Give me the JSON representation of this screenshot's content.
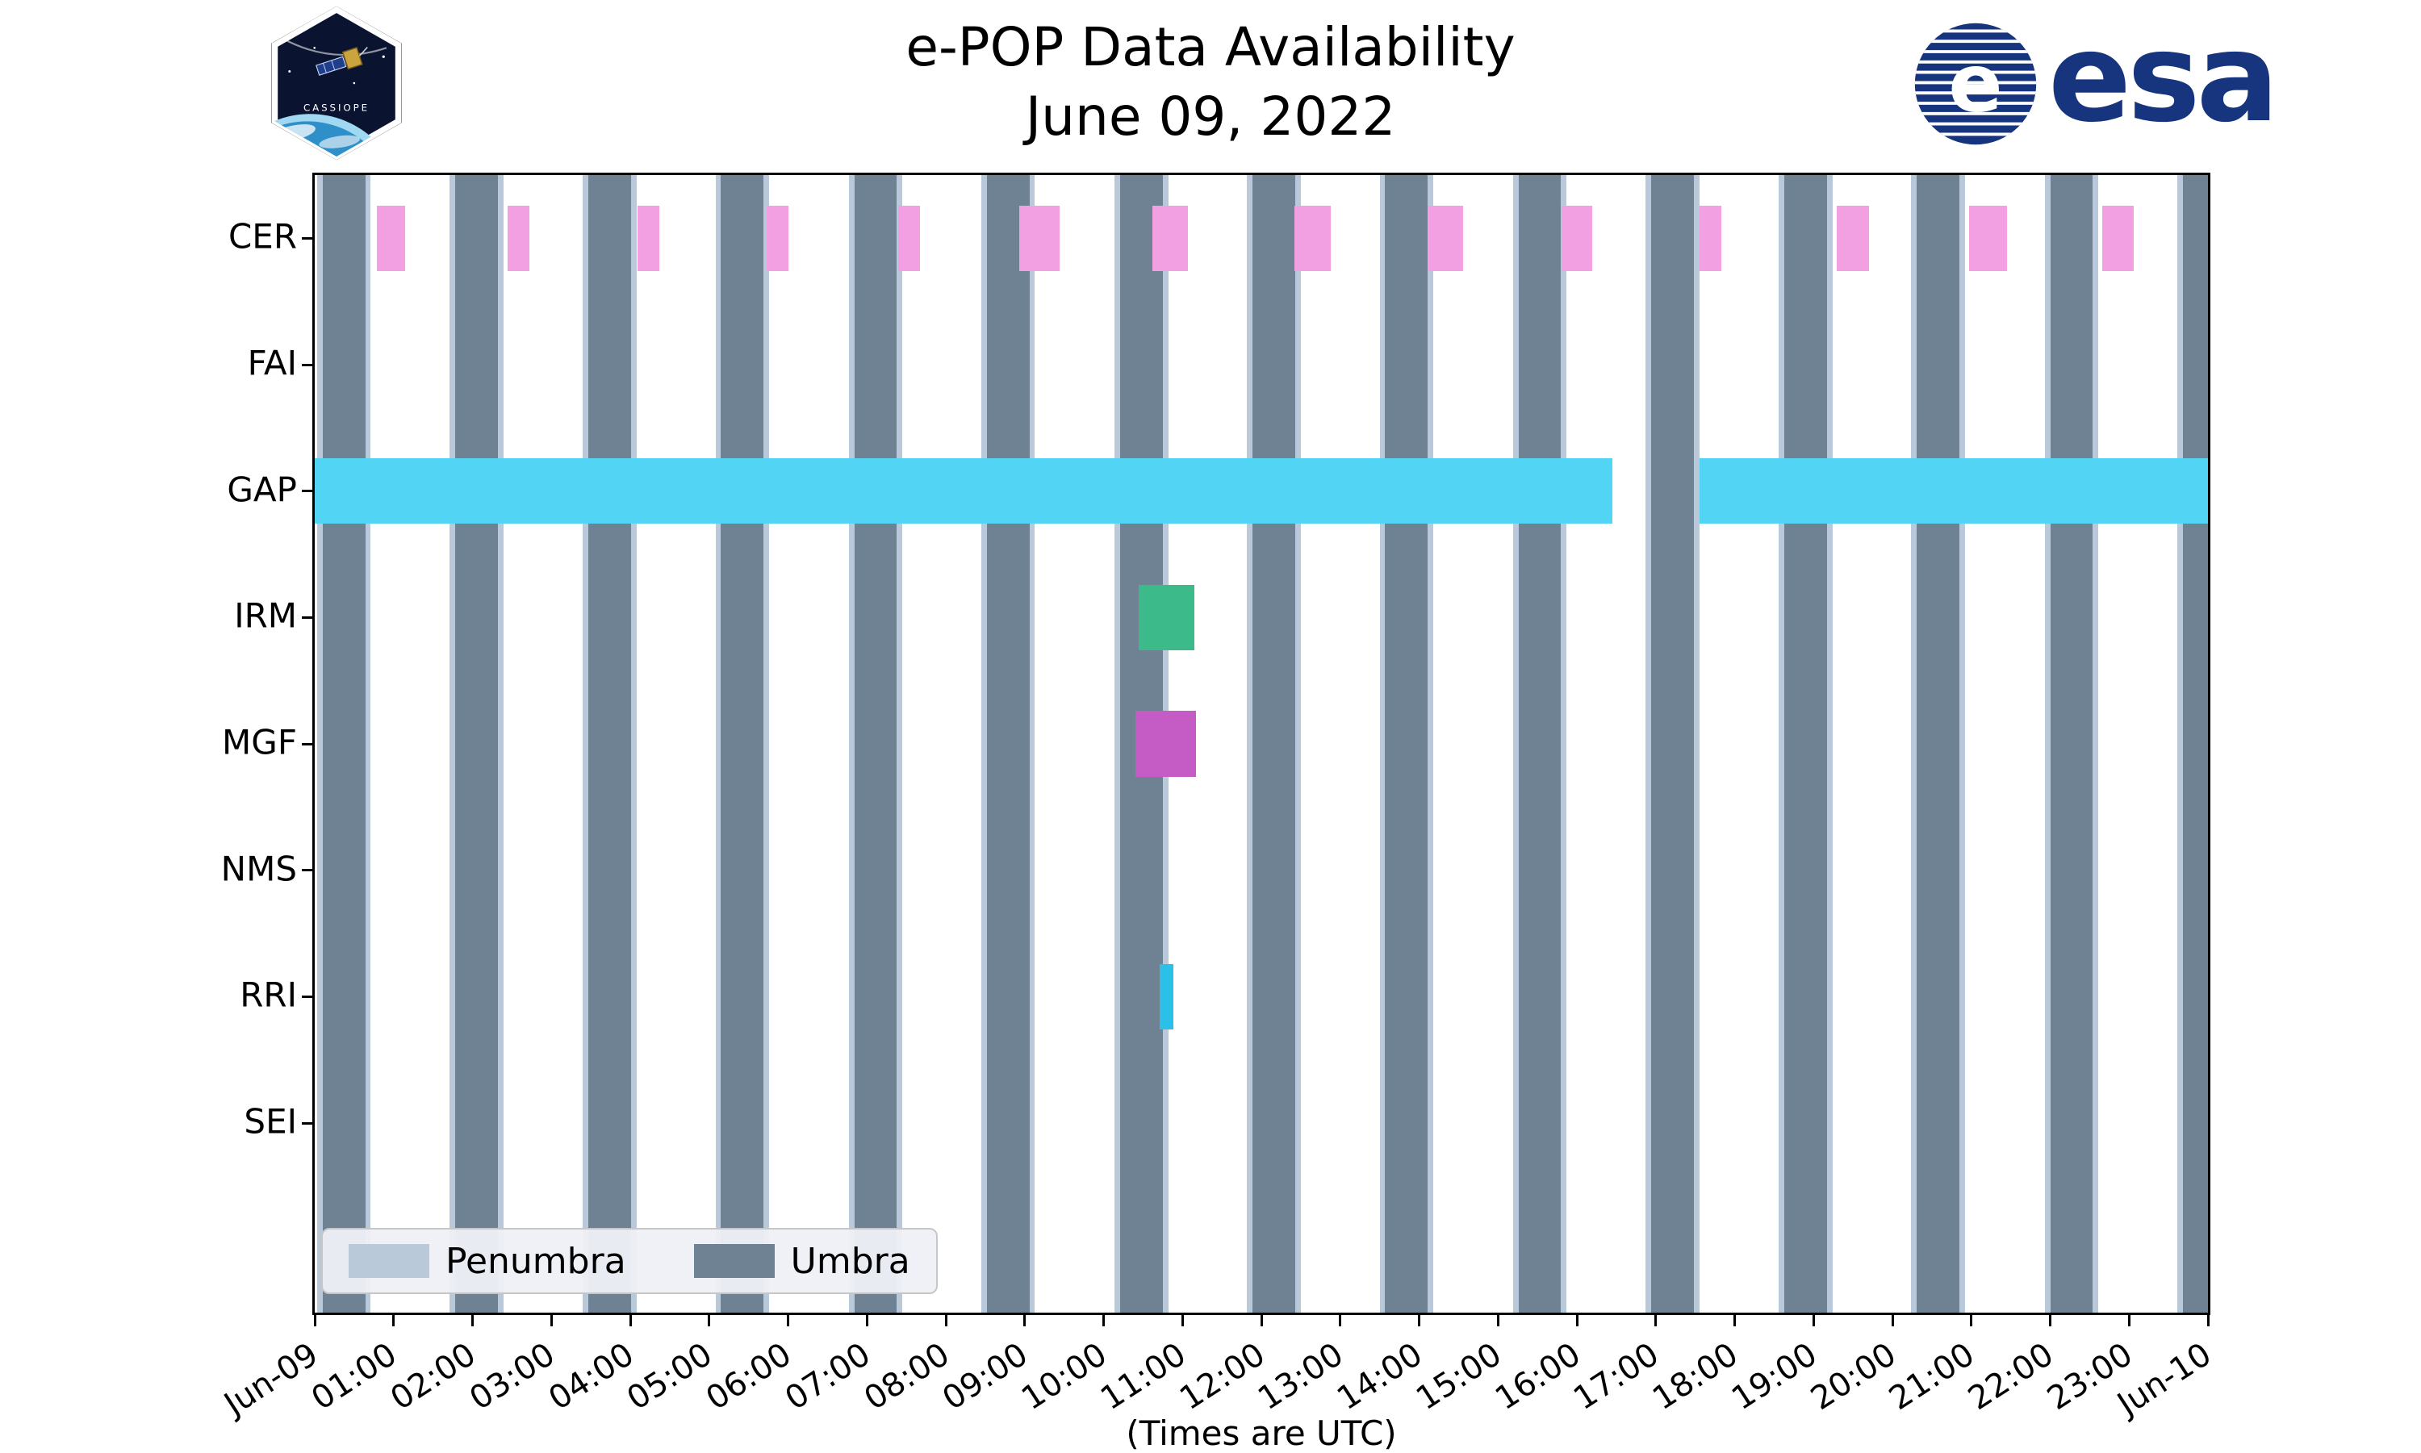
{
  "header": {
    "title": "e-POP Data Availability",
    "subtitle": "June 09, 2022",
    "cassiope_patch_label": "CASSIOPE",
    "esa_wordmark": "esa"
  },
  "axes": {
    "instruments": [
      "CER",
      "FAI",
      "GAP",
      "IRM",
      "MGF",
      "NMS",
      "RRI",
      "SEI"
    ],
    "x_ticks": [
      "Jun-09",
      "01:00",
      "02:00",
      "03:00",
      "04:00",
      "05:00",
      "06:00",
      "07:00",
      "08:00",
      "09:00",
      "10:00",
      "11:00",
      "12:00",
      "13:00",
      "14:00",
      "15:00",
      "16:00",
      "17:00",
      "18:00",
      "19:00",
      "20:00",
      "21:00",
      "22:00",
      "23:00",
      "Jun-10"
    ],
    "x_note": "(Times are UTC)"
  },
  "legend": {
    "items": [
      {
        "label": "Penumbra",
        "color": "#b9c9da"
      },
      {
        "label": "Umbra",
        "color": "#6e8294"
      }
    ]
  },
  "chart_data": {
    "type": "timeline",
    "title": "e-POP Data Availability",
    "date": "June 09, 2022",
    "x_unit": "hours UTC",
    "x_range": [
      0,
      24
    ],
    "rows": [
      "CER",
      "FAI",
      "GAP",
      "IRM",
      "MGF",
      "NMS",
      "RRI",
      "SEI"
    ],
    "penumbra_pad_hours": 0.07,
    "umbra_intervals": [
      [
        0.1,
        0.64
      ],
      [
        1.78,
        2.32
      ],
      [
        3.47,
        4.01
      ],
      [
        5.15,
        5.69
      ],
      [
        6.84,
        7.38
      ],
      [
        8.52,
        9.06
      ],
      [
        10.21,
        10.75
      ],
      [
        11.89,
        12.43
      ],
      [
        13.57,
        14.11
      ],
      [
        15.26,
        15.8
      ],
      [
        16.94,
        17.48
      ],
      [
        18.63,
        19.17
      ],
      [
        20.31,
        20.85
      ],
      [
        22.0,
        22.54
      ],
      [
        23.68,
        24.22
      ]
    ],
    "series": [
      {
        "name": "CER",
        "color": "#f2a0e2",
        "intervals": [
          [
            0.79,
            1.15
          ],
          [
            2.44,
            2.72
          ],
          [
            4.09,
            4.37
          ],
          [
            5.73,
            6.01
          ],
          [
            7.4,
            7.67
          ],
          [
            8.93,
            9.44
          ],
          [
            10.62,
            11.07
          ],
          [
            12.42,
            12.88
          ],
          [
            14.11,
            14.56
          ],
          [
            15.81,
            16.19
          ],
          [
            17.56,
            17.83
          ],
          [
            19.29,
            19.7
          ],
          [
            20.97,
            21.45
          ],
          [
            22.66,
            23.06
          ]
        ]
      },
      {
        "name": "FAI",
        "color": null,
        "intervals": []
      },
      {
        "name": "GAP",
        "color": "#52d5f4",
        "intervals": [
          [
            0.0,
            16.45
          ],
          [
            17.55,
            24.0
          ]
        ]
      },
      {
        "name": "IRM",
        "color": "#3cba8a",
        "intervals": [
          [
            10.44,
            11.15
          ]
        ]
      },
      {
        "name": "MGF",
        "color": "#c55cc5",
        "intervals": [
          [
            10.4,
            11.17
          ]
        ]
      },
      {
        "name": "NMS",
        "color": null,
        "intervals": []
      },
      {
        "name": "RRI",
        "color": "#2bc0e8",
        "intervals": [
          [
            10.71,
            10.88
          ]
        ]
      },
      {
        "name": "SEI",
        "color": null,
        "intervals": []
      }
    ]
  }
}
